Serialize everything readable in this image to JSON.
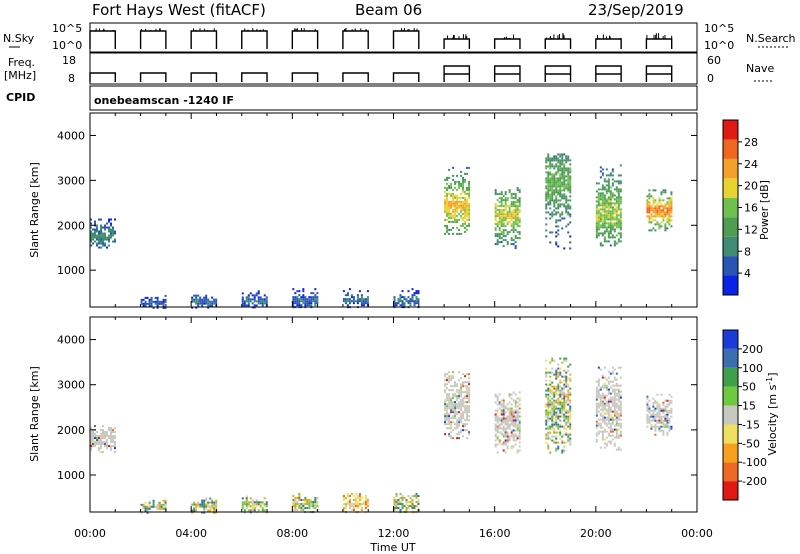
{
  "header": {
    "station": "Fort Hays West (fitACF)",
    "beam": "Beam 06",
    "date": "23/Sep/2019"
  },
  "params_panel": {
    "nsky_label": "N.Sky",
    "nsky_ticks": [
      "10^5",
      "10^0"
    ],
    "nsearch_label": "N.Search",
    "nsearch_ticks": [
      "10^5",
      "10^0"
    ],
    "freq_label_1": "Freq.",
    "freq_label_2": "[MHz]",
    "freq_ticks": [
      "18",
      "8"
    ],
    "nave_label": "Nave",
    "nave_ticks": [
      "60",
      "0"
    ],
    "cpid_label": "CPID",
    "mode_text": "onebeamscan -1240 IF"
  },
  "colors": {
    "power_scale": [
      "#0a22e6",
      "#2b55b4",
      "#3f8b74",
      "#4e9d52",
      "#6fc050",
      "#e8d230",
      "#f5a02a",
      "#ee6620",
      "#e01a12"
    ],
    "velocity_scale": [
      "#e01a12",
      "#ee6a22",
      "#f6a020",
      "#efe060",
      "#c8c8c0",
      "#70c840",
      "#3f9f4a",
      "#3a6eb0",
      "#1c3ad8"
    ]
  },
  "chart_data": [
    {
      "type": "heatmap",
      "name": "power",
      "x_axis": {
        "label": "",
        "range": [
          0,
          24
        ],
        "ticks": [
          "00:00",
          "04:00",
          "08:00",
          "12:00",
          "16:00",
          "20:00",
          "00:00"
        ]
      },
      "y_axis": {
        "label": "Slant Range [km]",
        "range": [
          180,
          4500
        ],
        "ticks": [
          1000,
          2000,
          3000,
          4000
        ]
      },
      "colorbar": {
        "label": "Power [dB]",
        "ticks": [
          4,
          8,
          12,
          16,
          20,
          24,
          28
        ],
        "range": [
          0,
          32
        ]
      },
      "scan_blocks": [
        {
          "t_start": 0.0,
          "t_end": 1.0,
          "range_lo": 1500,
          "range_hi": 2150,
          "peak_range": 1800,
          "peak": 10
        },
        {
          "t_start": 2.0,
          "t_end": 3.0,
          "range_lo": 180,
          "range_hi": 450,
          "peak_range": 300,
          "peak": 6
        },
        {
          "t_start": 4.0,
          "t_end": 5.0,
          "range_lo": 180,
          "range_hi": 500,
          "peak_range": 320,
          "peak": 7
        },
        {
          "t_start": 6.0,
          "t_end": 7.0,
          "range_lo": 180,
          "range_hi": 550,
          "peak_range": 330,
          "peak": 7
        },
        {
          "t_start": 8.0,
          "t_end": 9.0,
          "range_lo": 180,
          "range_hi": 600,
          "peak_range": 340,
          "peak": 7
        },
        {
          "t_start": 10.0,
          "t_end": 11.0,
          "range_lo": 180,
          "range_hi": 600,
          "peak_range": 340,
          "peak": 7
        },
        {
          "t_start": 12.0,
          "t_end": 13.0,
          "range_lo": 180,
          "range_hi": 600,
          "peak_range": 340,
          "peak": 7
        },
        {
          "t_start": 14.0,
          "t_end": 15.0,
          "range_lo": 1800,
          "range_hi": 3300,
          "peak_range": 2450,
          "peak": 22
        },
        {
          "t_start": 16.0,
          "t_end": 17.0,
          "range_lo": 1500,
          "range_hi": 2850,
          "peak_range": 2250,
          "peak": 20
        },
        {
          "t_start": 18.0,
          "t_end": 19.0,
          "range_lo": 1500,
          "range_hi": 3600,
          "peak_range": 2950,
          "peak": 15
        },
        {
          "t_start": 20.0,
          "t_end": 21.0,
          "range_lo": 1550,
          "range_hi": 3400,
          "peak_range": 2300,
          "peak": 18
        },
        {
          "t_start": 22.0,
          "t_end": 23.0,
          "range_lo": 1900,
          "range_hi": 2800,
          "peak_range": 2350,
          "peak": 26
        }
      ]
    },
    {
      "type": "heatmap",
      "name": "velocity",
      "x_axis": {
        "label": "Time UT",
        "range": [
          0,
          24
        ],
        "ticks": [
          "00:00",
          "04:00",
          "08:00",
          "12:00",
          "16:00",
          "20:00",
          "00:00"
        ]
      },
      "y_axis": {
        "label": "Slant Range [km]",
        "range": [
          180,
          4500
        ],
        "ticks": [
          1000,
          2000,
          3000,
          4000
        ]
      },
      "colorbar": {
        "label": "Velocity [m s^-1]",
        "ticks": [
          -200,
          -100,
          -50,
          -15,
          15,
          50,
          100,
          200
        ]
      },
      "scan_blocks": [
        {
          "t_start": 0.0,
          "t_end": 1.0,
          "range_lo": 1500,
          "range_hi": 2150,
          "dominant": "ground"
        },
        {
          "t_start": 2.0,
          "t_end": 3.0,
          "range_lo": 180,
          "range_hi": 450,
          "dominant": "mixed"
        },
        {
          "t_start": 4.0,
          "t_end": 5.0,
          "range_lo": 180,
          "range_hi": 500,
          "dominant": "mixed"
        },
        {
          "t_start": 6.0,
          "t_end": 7.0,
          "range_lo": 180,
          "range_hi": 550,
          "dominant": "mixed"
        },
        {
          "t_start": 8.0,
          "t_end": 9.0,
          "range_lo": 180,
          "range_hi": 600,
          "dominant": "mixed"
        },
        {
          "t_start": 10.0,
          "t_end": 11.0,
          "range_lo": 180,
          "range_hi": 600,
          "dominant": "negative"
        },
        {
          "t_start": 12.0,
          "t_end": 13.0,
          "range_lo": 180,
          "range_hi": 600,
          "dominant": "mixed"
        },
        {
          "t_start": 14.0,
          "t_end": 15.0,
          "range_lo": 1800,
          "range_hi": 3300,
          "dominant": "ground"
        },
        {
          "t_start": 16.0,
          "t_end": 17.0,
          "range_lo": 1500,
          "range_hi": 2850,
          "dominant": "ground"
        },
        {
          "t_start": 18.0,
          "t_end": 19.0,
          "range_lo": 1500,
          "range_hi": 3600,
          "dominant": "mixed"
        },
        {
          "t_start": 20.0,
          "t_end": 21.0,
          "range_lo": 1550,
          "range_hi": 3400,
          "dominant": "ground"
        },
        {
          "t_start": 22.0,
          "t_end": 23.0,
          "range_lo": 1900,
          "range_hi": 2800,
          "dominant": "ground"
        }
      ]
    }
  ]
}
